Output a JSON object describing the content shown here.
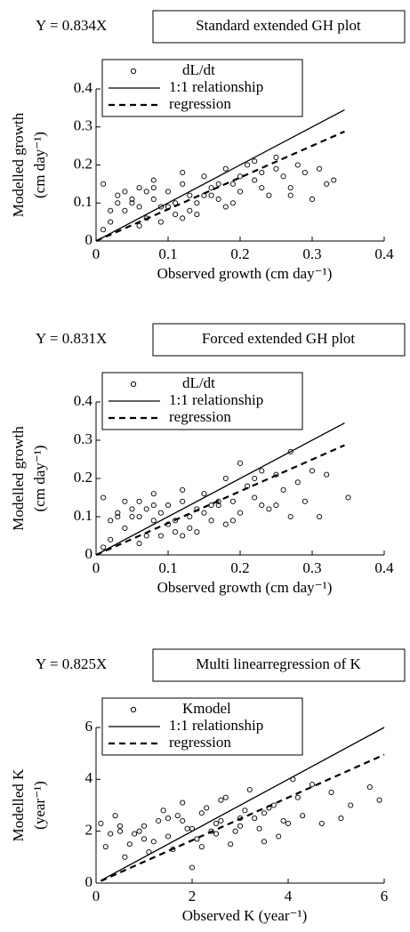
{
  "chart_data": [
    {
      "type": "scatter",
      "annotation": "Y = 0.834X",
      "title": "Standard extended GH plot",
      "xlabel": "Observed growth (cm day⁻¹)",
      "ylabel": [
        "Modelled growth",
        "(cm  day⁻¹)"
      ],
      "xlim": [
        0,
        0.4
      ],
      "ylim": [
        0,
        0.4
      ],
      "xticks": [
        0,
        0.1,
        0.2,
        0.3,
        0.4
      ],
      "yticks": [
        0,
        0.1,
        0.2,
        0.3,
        0.4
      ],
      "series": [
        {
          "name": "dL/dt",
          "color": "#000000",
          "style": "circle",
          "x": [
            0.01,
            0.02,
            0.03,
            0.04,
            0.05,
            0.06,
            0.07,
            0.08,
            0.09,
            0.1,
            0.11,
            0.12,
            0.13,
            0.14,
            0.15,
            0.16,
            0.17,
            0.18,
            0.19,
            0.2,
            0.21,
            0.22,
            0.23,
            0.24,
            0.25,
            0.26,
            0.27,
            0.28,
            0.29,
            0.3,
            0.31,
            0.32,
            0.33,
            0.02,
            0.04,
            0.06,
            0.08,
            0.1,
            0.12,
            0.14,
            0.16,
            0.18,
            0.2,
            0.22,
            0.05,
            0.07,
            0.09,
            0.11,
            0.13,
            0.15,
            0.03,
            0.01,
            0.17,
            0.19,
            0.23,
            0.25,
            0.27,
            0.12,
            0.08,
            0.06
          ],
          "values": [
            0.15,
            0.05,
            0.12,
            0.08,
            0.1,
            0.14,
            0.06,
            0.11,
            0.09,
            0.13,
            0.07,
            0.15,
            0.12,
            0.1,
            0.17,
            0.14,
            0.11,
            0.19,
            0.15,
            0.13,
            0.2,
            0.16,
            0.18,
            0.12,
            0.22,
            0.17,
            0.14,
            0.2,
            0.18,
            0.11,
            0.19,
            0.15,
            0.16,
            0.08,
            0.13,
            0.04,
            0.16,
            0.09,
            0.18,
            0.07,
            0.12,
            0.09,
            0.17,
            0.21,
            0.11,
            0.13,
            0.05,
            0.1,
            0.08,
            0.12,
            0.1,
            0.03,
            0.15,
            0.1,
            0.14,
            0.19,
            0.12,
            0.06,
            0.14,
            0.09
          ]
        },
        {
          "name": "1:1 relationship",
          "color": "#000000",
          "style": "solid",
          "x": [
            0,
            0.345
          ],
          "values": [
            0,
            0.345
          ]
        },
        {
          "name": "regression",
          "color": "#000000",
          "style": "dashed",
          "x": [
            0,
            0.345
          ],
          "values": [
            0,
            0.288
          ]
        }
      ]
    },
    {
      "type": "scatter",
      "annotation": "Y = 0.831X",
      "title": "Forced extended GH plot",
      "xlabel": "Observed growth (cm day⁻¹)",
      "ylabel": [
        "Modelled growth",
        "(cm  day⁻¹)"
      ],
      "xlim": [
        0,
        0.4
      ],
      "ylim": [
        0,
        0.4
      ],
      "xticks": [
        0,
        0.1,
        0.2,
        0.3,
        0.4
      ],
      "yticks": [
        0,
        0.1,
        0.2,
        0.3,
        0.4
      ],
      "series": [
        {
          "name": "dL/dt",
          "color": "#000000",
          "style": "circle",
          "x": [
            0.01,
            0.02,
            0.03,
            0.04,
            0.05,
            0.06,
            0.07,
            0.08,
            0.09,
            0.1,
            0.11,
            0.12,
            0.13,
            0.14,
            0.15,
            0.16,
            0.17,
            0.18,
            0.19,
            0.2,
            0.21,
            0.22,
            0.23,
            0.24,
            0.25,
            0.26,
            0.27,
            0.28,
            0.29,
            0.3,
            0.31,
            0.32,
            0.35,
            0.02,
            0.04,
            0.06,
            0.08,
            0.1,
            0.12,
            0.14,
            0.16,
            0.18,
            0.2,
            0.22,
            0.05,
            0.07,
            0.09,
            0.11,
            0.13,
            0.15,
            0.03,
            0.01,
            0.17,
            0.19,
            0.23,
            0.25,
            0.27,
            0.12,
            0.08,
            0.06
          ],
          "values": [
            0.15,
            0.04,
            0.1,
            0.07,
            0.12,
            0.14,
            0.05,
            0.09,
            0.11,
            0.13,
            0.06,
            0.14,
            0.1,
            0.12,
            0.16,
            0.09,
            0.13,
            0.2,
            0.14,
            0.11,
            0.18,
            0.15,
            0.22,
            0.12,
            0.21,
            0.17,
            0.27,
            0.19,
            0.14,
            0.22,
            0.1,
            0.21,
            0.15,
            0.09,
            0.14,
            0.03,
            0.16,
            0.08,
            0.17,
            0.06,
            0.13,
            0.08,
            0.24,
            0.2,
            0.1,
            0.12,
            0.05,
            0.09,
            0.07,
            0.11,
            0.11,
            0.02,
            0.14,
            0.09,
            0.13,
            0.13,
            0.1,
            0.05,
            0.13,
            0.1
          ]
        },
        {
          "name": "1:1 relationship",
          "color": "#000000",
          "style": "solid",
          "x": [
            0,
            0.345
          ],
          "values": [
            0,
            0.345
          ]
        },
        {
          "name": "regression",
          "color": "#000000",
          "style": "dashed",
          "x": [
            0,
            0.345
          ],
          "values": [
            0,
            0.287
          ]
        }
      ]
    },
    {
      "type": "scatter",
      "annotation": "Y = 0.825X",
      "title": "Multi linearregression of K",
      "xlabel": "Observed K (year⁻¹)",
      "ylabel": [
        "Modelled K",
        "(year⁻¹)"
      ],
      "xlim": [
        0,
        6
      ],
      "ylim": [
        0,
        6
      ],
      "xticks": [
        0,
        2,
        4,
        6
      ],
      "yticks": [
        0,
        2,
        4,
        6
      ],
      "series": [
        {
          "name": "Kmodel",
          "color": "#000000",
          "style": "circle",
          "x": [
            0.1,
            0.3,
            0.5,
            0.7,
            0.9,
            1.1,
            1.3,
            1.5,
            1.7,
            1.9,
            2.1,
            2.3,
            2.5,
            2.7,
            2.9,
            3.1,
            3.3,
            3.5,
            3.7,
            3.9,
            4.1,
            4.3,
            4.5,
            4.7,
            4.9,
            5.1,
            5.3,
            5.7,
            5.9,
            0.2,
            0.4,
            0.6,
            0.8,
            1.0,
            1.2,
            1.4,
            1.6,
            1.8,
            2.0,
            2.2,
            2.4,
            2.6,
            2.8,
            3.0,
            3.2,
            3.4,
            3.6,
            3.8,
            4.0,
            4.2,
            0.5,
            1.0,
            1.5,
            2.0,
            2.5,
            3.0,
            3.5,
            1.8,
            2.2,
            2.6
          ],
          "values": [
            2.3,
            1.9,
            2.2,
            1.5,
            2.0,
            1.2,
            2.4,
            1.8,
            2.6,
            2.1,
            1.7,
            2.9,
            2.3,
            3.3,
            2.0,
            2.8,
            2.5,
            1.6,
            3.0,
            2.4,
            4.0,
            2.6,
            3.8,
            2.3,
            3.5,
            2.5,
            3.0,
            3.7,
            3.2,
            1.4,
            2.6,
            1.0,
            1.9,
            2.2,
            1.6,
            2.8,
            1.3,
            2.4,
            0.6,
            2.7,
            2.0,
            3.2,
            1.5,
            2.5,
            3.6,
            2.1,
            2.9,
            1.8,
            2.3,
            3.3,
            2.0,
            1.7,
            2.5,
            2.1,
            1.9,
            2.2,
            2.7,
            3.1,
            1.4,
            2.4
          ]
        },
        {
          "name": "1:1 relationship",
          "color": "#000000",
          "style": "solid",
          "x": [
            0.1,
            6
          ],
          "values": [
            0.1,
            6
          ]
        },
        {
          "name": "regression",
          "color": "#000000",
          "style": "dashed",
          "x": [
            0.1,
            6
          ],
          "values": [
            0.08,
            4.95
          ]
        }
      ]
    }
  ]
}
